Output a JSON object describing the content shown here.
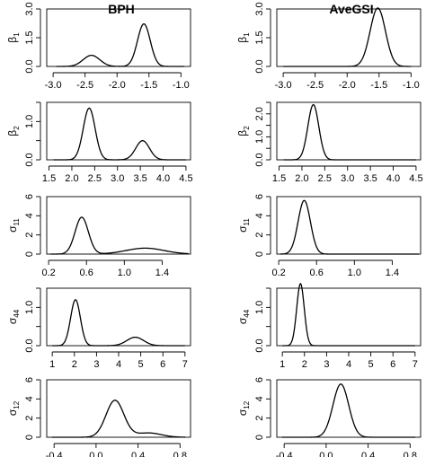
{
  "chart_data": {
    "type": "line",
    "columns": [
      "BPH",
      "AveGSI"
    ],
    "panels": [
      {
        "column": "BPH",
        "row": 0,
        "param_symbol": "β",
        "param_subscript": "1",
        "xlim": [
          -3.1,
          -0.85
        ],
        "ylim": [
          0,
          3.0
        ],
        "xticks": [
          -3.0,
          -2.5,
          -2.0,
          -1.5,
          -1.0
        ],
        "xtick_labels": [
          "-3.0",
          "-2.5",
          "-2.0",
          "-1.5",
          "-1.0"
        ],
        "yticks": [
          0,
          1.5,
          3.0
        ],
        "ytick_labels": [
          "0.0",
          "1.5",
          "3.0"
        ],
        "curve": {
          "x_range": [
            -2.95,
            -0.95
          ],
          "components": [
            {
              "mean": -2.4,
              "sd": 0.13,
              "height": 0.58
            },
            {
              "mean": -1.58,
              "sd": 0.1,
              "height": 2.22
            }
          ]
        }
      },
      {
        "column": "AveGSI",
        "row": 0,
        "param_symbol": "β",
        "param_subscript": "1",
        "xlim": [
          -3.1,
          -0.85
        ],
        "ylim": [
          0,
          3.0
        ],
        "xticks": [
          -3.0,
          -2.5,
          -2.0,
          -1.5,
          -1.0
        ],
        "xtick_labels": [
          "-3.0",
          "-2.5",
          "-2.0",
          "-1.5",
          "-1.0"
        ],
        "yticks": [
          0,
          1.5,
          3.0
        ],
        "ytick_labels": [
          "0.0",
          "1.5",
          "3.0"
        ],
        "curve": {
          "x_range": [
            -3.0,
            -1.0
          ],
          "components": [
            {
              "mean": -1.52,
              "sd": 0.12,
              "height": 3.05
            }
          ]
        }
      },
      {
        "column": "BPH",
        "row": 1,
        "param_symbol": "β",
        "param_subscript": "2",
        "xlim": [
          1.45,
          4.6
        ],
        "ylim": [
          0,
          1.5
        ],
        "xticks": [
          1.5,
          2.0,
          2.5,
          3.0,
          3.5,
          4.0,
          4.5
        ],
        "xtick_labels": [
          "1.5",
          "2.0",
          "2.5",
          "3.0",
          "3.5",
          "4.0",
          "4.5"
        ],
        "yticks": [
          0,
          0.5,
          1.0,
          1.5
        ],
        "ytick_labels": [
          "0.0",
          "",
          "1.0",
          ""
        ],
        "curve": {
          "x_range": [
            1.6,
            4.5
          ],
          "components": [
            {
              "mean": 2.38,
              "sd": 0.13,
              "height": 1.35
            },
            {
              "mean": 3.55,
              "sd": 0.15,
              "height": 0.5
            }
          ]
        }
      },
      {
        "column": "AveGSI",
        "row": 1,
        "param_symbol": "β",
        "param_subscript": "2",
        "xlim": [
          1.45,
          4.6
        ],
        "ylim": [
          0,
          2.5
        ],
        "xticks": [
          1.5,
          2.0,
          2.5,
          3.0,
          3.5,
          4.0,
          4.5
        ],
        "xtick_labels": [
          "1.5",
          "2.0",
          "2.5",
          "3.0",
          "3.5",
          "4.0",
          "4.5"
        ],
        "yticks": [
          0,
          0.5,
          1.0,
          1.5,
          2.0,
          2.5
        ],
        "ytick_labels": [
          "0.0",
          "",
          "1.0",
          "",
          "2.0",
          ""
        ],
        "curve": {
          "x_range": [
            1.6,
            4.5
          ],
          "components": [
            {
              "mean": 2.25,
              "sd": 0.12,
              "height": 2.4
            }
          ]
        }
      },
      {
        "column": "BPH",
        "row": 2,
        "param_symbol": "σ",
        "param_subscript": "11",
        "xlim": [
          0.18,
          1.7
        ],
        "ylim": [
          0,
          6
        ],
        "xticks": [
          0.2,
          0.6,
          1.0,
          1.4
        ],
        "xtick_labels": [
          "0.2",
          "0.6",
          "1.0",
          "1.4"
        ],
        "yticks": [
          0,
          2,
          4,
          6
        ],
        "ytick_labels": [
          "0",
          "2",
          "4",
          "6"
        ],
        "curve": {
          "x_range": [
            0.22,
            1.68
          ],
          "components": [
            {
              "mean": 0.55,
              "sd": 0.07,
              "height": 3.85
            },
            {
              "mean": 1.22,
              "sd": 0.2,
              "height": 0.62
            }
          ]
        }
      },
      {
        "column": "AveGSI",
        "row": 2,
        "param_symbol": "σ",
        "param_subscript": "11",
        "xlim": [
          0.18,
          1.7
        ],
        "ylim": [
          0,
          6
        ],
        "xticks": [
          0.2,
          0.6,
          1.0,
          1.4
        ],
        "xtick_labels": [
          "0.2",
          "0.6",
          "1.0",
          "1.4"
        ],
        "yticks": [
          0,
          2,
          4,
          6
        ],
        "ytick_labels": [
          "0",
          "2",
          "4",
          "6"
        ],
        "curve": {
          "x_range": [
            0.22,
            1.68
          ],
          "components": [
            {
              "mean": 0.47,
              "sd": 0.065,
              "height": 5.6
            }
          ]
        }
      },
      {
        "column": "BPH",
        "row": 3,
        "param_symbol": "σ",
        "param_subscript": "44",
        "xlim": [
          0.75,
          7.25
        ],
        "ylim": [
          0,
          1.5
        ],
        "xticks": [
          1,
          2,
          3,
          4,
          5,
          6,
          7
        ],
        "xtick_labels": [
          "1",
          "2",
          "3",
          "4",
          "5",
          "6",
          "7"
        ],
        "yticks": [
          0,
          0.5,
          1.0,
          1.5
        ],
        "ytick_labels": [
          "0.0",
          "",
          "1.0",
          ""
        ],
        "curve": {
          "x_range": [
            1.0,
            7.0
          ],
          "components": [
            {
              "mean": 2.05,
              "sd": 0.22,
              "height": 1.2
            },
            {
              "mean": 4.75,
              "sd": 0.38,
              "height": 0.22
            }
          ]
        }
      },
      {
        "column": "AveGSI",
        "row": 3,
        "param_symbol": "σ",
        "param_subscript": "44",
        "xlim": [
          0.75,
          7.25
        ],
        "ylim": [
          0,
          1.5
        ],
        "xticks": [
          1,
          2,
          3,
          4,
          5,
          6,
          7
        ],
        "xtick_labels": [
          "1",
          "2",
          "3",
          "4",
          "5",
          "6",
          "7"
        ],
        "yticks": [
          0,
          0.5,
          1.0,
          1.5
        ],
        "ytick_labels": [
          "0.0",
          "",
          "1.0",
          ""
        ],
        "curve": {
          "x_range": [
            1.0,
            7.0
          ],
          "components": [
            {
              "mean": 1.82,
              "sd": 0.17,
              "height": 1.62
            }
          ]
        }
      },
      {
        "column": "BPH",
        "row": 4,
        "param_symbol": "σ",
        "param_subscript": "12",
        "xlim": [
          -0.47,
          0.9
        ],
        "ylim": [
          0,
          6
        ],
        "xticks": [
          -0.4,
          0.0,
          0.4,
          0.8
        ],
        "xtick_labels": [
          "-0.4",
          "0.0",
          "0.4",
          "0.8"
        ],
        "yticks": [
          0,
          2,
          4,
          6
        ],
        "ytick_labels": [
          "0",
          "2",
          "4",
          "6"
        ],
        "curve": {
          "x_range": [
            -0.42,
            0.85
          ],
          "components": [
            {
              "mean": 0.18,
              "sd": 0.085,
              "height": 3.85
            },
            {
              "mean": 0.5,
              "sd": 0.12,
              "height": 0.45
            }
          ]
        }
      },
      {
        "column": "AveGSI",
        "row": 4,
        "param_symbol": "σ",
        "param_subscript": "12",
        "xlim": [
          -0.47,
          0.9
        ],
        "ylim": [
          0,
          6
        ],
        "xticks": [
          -0.4,
          0.0,
          0.4,
          0.8
        ],
        "xtick_labels": [
          "-0.4",
          "0.0",
          "0.4",
          "0.8"
        ],
        "yticks": [
          0,
          2,
          4,
          6
        ],
        "ytick_labels": [
          "0",
          "2",
          "4",
          "6"
        ],
        "curve": {
          "x_range": [
            -0.42,
            0.85
          ],
          "components": [
            {
              "mean": 0.14,
              "sd": 0.075,
              "height": 5.55
            }
          ]
        }
      }
    ]
  }
}
